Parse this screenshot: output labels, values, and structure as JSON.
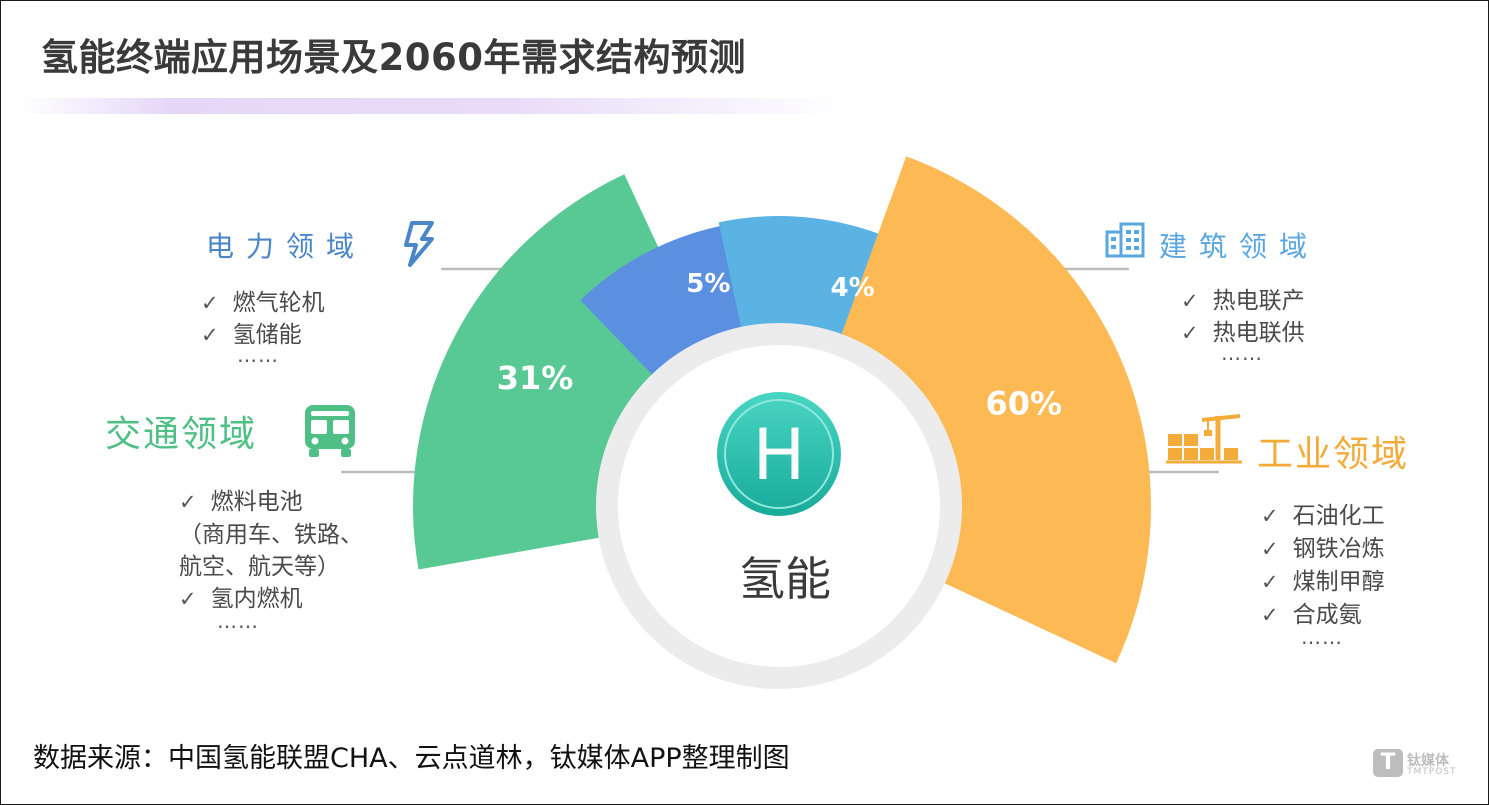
{
  "title": "氢能终端应用场景及2060年需求结构预测",
  "center_label": "氢能",
  "center_badge": "H",
  "colors": {
    "transport": "#58c894",
    "power": "#5b8fe0",
    "building": "#5bb3e3",
    "industry": "#fdb954",
    "title_text": "#3a3a3a",
    "power_head": "#4a86c8",
    "building_head": "#5aa7df",
    "transport_head": "#4fbf86",
    "industry_head": "#f3ab3a"
  },
  "chart_data": {
    "type": "pie",
    "title": "氢能终端应用场景及2060年需求结构预测",
    "unit": "%",
    "slices": [
      {
        "name": "交通领域",
        "value": 31,
        "label": "31%",
        "color": "#58c894"
      },
      {
        "name": "电力领域",
        "value": 5,
        "label": "5%",
        "color": "#5b8fe0"
      },
      {
        "name": "建筑领域",
        "value": 4,
        "label": "4%",
        "color": "#5bb3e3"
      },
      {
        "name": "工业领域",
        "value": 60,
        "label": "60%",
        "color": "#fdb954"
      }
    ]
  },
  "domains": {
    "power": {
      "heading": "电力领域",
      "icon": "lightning-icon",
      "items": [
        "燃气轮机",
        "氢储能"
      ],
      "more": "……"
    },
    "building": {
      "heading": "建筑领域",
      "icon": "building-icon",
      "items": [
        "热电联产",
        "热电联供"
      ],
      "more": "……"
    },
    "transport": {
      "heading": "交通领域",
      "icon": "bus-icon",
      "items": [
        "燃料电池",
        "（商用车、铁路、",
        "航空、航天等）",
        "氢内燃机"
      ],
      "more": "……"
    },
    "industry": {
      "heading": "工业领域",
      "icon": "factory-crane-icon",
      "items": [
        "石油化工",
        "钢铁冶炼",
        "煤制甲醇",
        "合成氨"
      ],
      "more": "……"
    }
  },
  "checkmark": "✓",
  "source": "数据来源：中国氢能联盟CHA、云点道林，钛媒体APP整理制图",
  "watermark": {
    "logo_letter": "T",
    "name": "钛媒体",
    "name_en": "TMTPOST"
  }
}
